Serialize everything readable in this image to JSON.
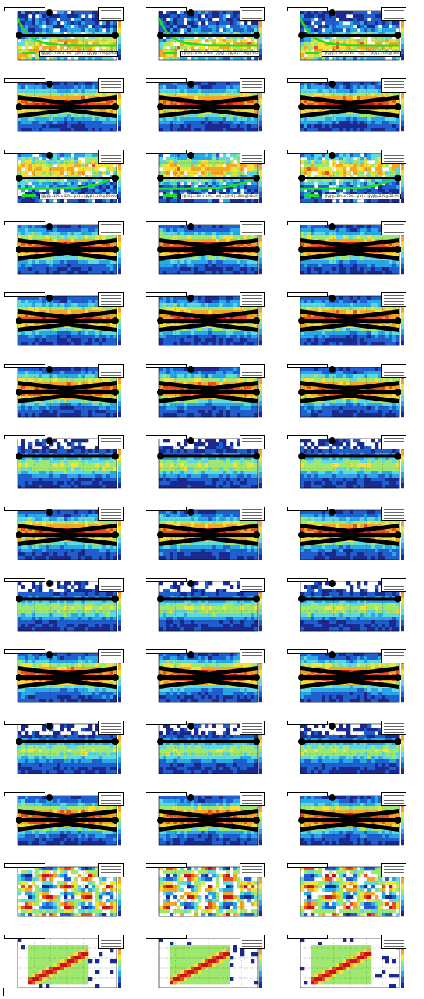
{
  "canvas": {
    "rows": 14,
    "cols": 3,
    "colormap": [
      "#1a2a8f",
      "#1f5fd0",
      "#29a8e8",
      "#5fd8e0",
      "#9fe870",
      "#f2e23a",
      "#f5a623",
      "#e8501f",
      "#c8141e"
    ],
    "fit_line_color": "#22dd22",
    "marker_color": "#000000"
  },
  "row_kinds": [
    "fitline",
    "bands",
    "fitline",
    "bands",
    "bands",
    "bands",
    "sparse",
    "bands",
    "sparse",
    "bands",
    "sparse",
    "bands",
    "checker",
    "diagonal"
  ],
  "fit_text": {
    "row0": "⟨|βγ/β|⟩=(18% ⊕ 16%... ρ[βγ] = ⟨|βγ/β|⟩=22%@[20eV/c])",
    "row2": "⟨|βγ/β|⟩=18% ⊕ 13%... ρ[σ] = ⟨|βγ/β|⟩=24%@[20eV/c])"
  },
  "chart_data": {
    "type": "heatmap",
    "layout": "14 rows × 3 columns of 2D histogram panels (all / positive / negative)",
    "panel_titles_legible": false,
    "notes": "Panel text is too small to be read; only the overall structure is reproduced."
  }
}
